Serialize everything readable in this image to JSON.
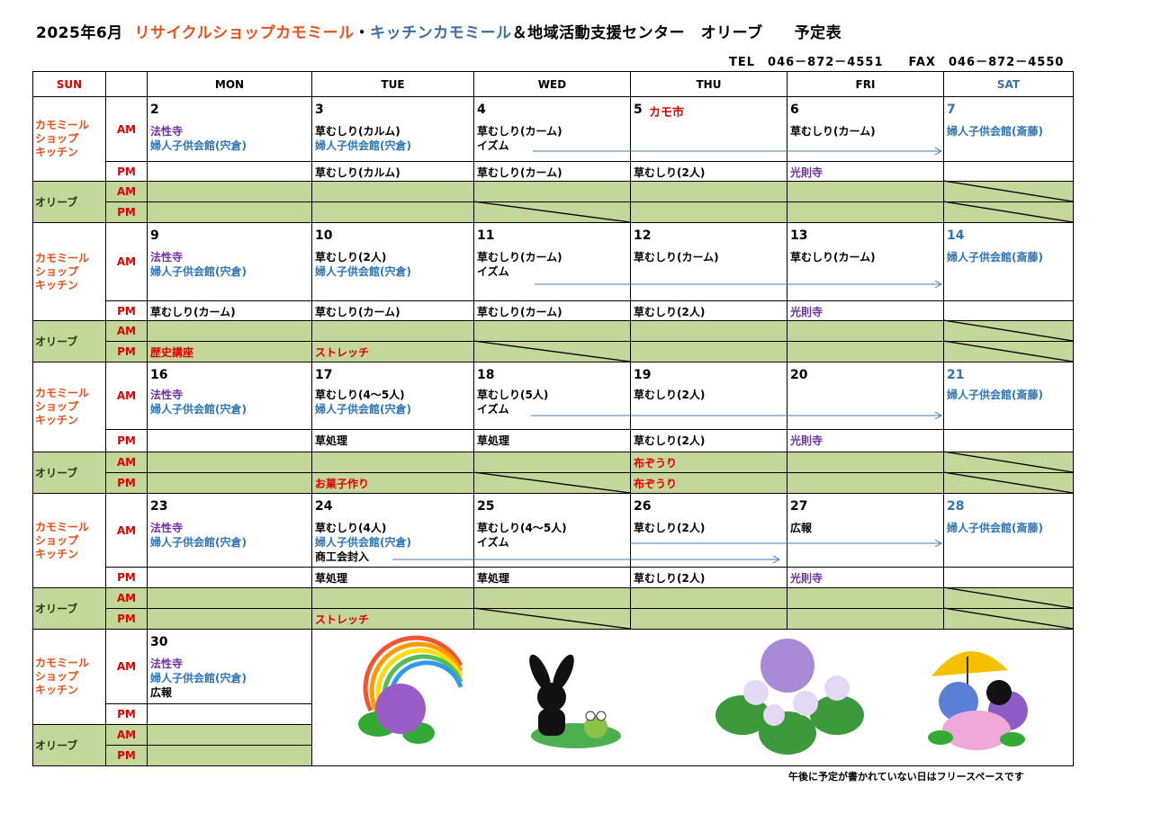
{
  "title": {
    "date": "2025年6月",
    "shop": "リサイクルショップカモミール",
    "dot": "・",
    "kitchen": "キッチンカモミール",
    "rest": "＆地域活動支援センター　オリーブ　　予定表"
  },
  "contact": "TEL　046－872－4551　　FAX　046－872－4550",
  "colors": {
    "orange": "#e8501a",
    "steel_blue": "#3a6ea5",
    "purple": "#7030a0",
    "blue": "#2e75b6",
    "red": "#e00000",
    "black": "#000000",
    "olive_green": "#c4d79b"
  },
  "headers": {
    "sun": "SUN",
    "mon": "MON",
    "tue": "TUE",
    "wed": "WED",
    "thu": "THU",
    "fri": "FRI",
    "sat": "SAT"
  },
  "labels": {
    "kitchen": "カモミール\nショップ\nキッチン",
    "olive": "オリーブ",
    "am": "AM",
    "pm": "PM"
  },
  "weeks": [
    {
      "days": [
        {
          "num": "2",
          "am": [
            {
              "t": "法性寺",
              "c": "#7030a0"
            },
            {
              "t": "婦人子供会館(宍倉)",
              "c": "#2e75b6"
            }
          ],
          "pm": []
        },
        {
          "num": "3",
          "am": [
            {
              "t": "草むしり(カルム)",
              "c": "#000000"
            },
            {
              "t": "婦人子供会館(宍倉)",
              "c": "#2e75b6"
            }
          ],
          "pm": [
            {
              "t": "草むしり(カルム)",
              "c": "#000000"
            }
          ]
        },
        {
          "num": "4",
          "am": [
            {
              "t": "草むしり(カーム)",
              "c": "#000000"
            },
            {
              "t": "イズム",
              "c": "#000000"
            }
          ],
          "pm": [
            {
              "t": "草むしり(カーム)",
              "c": "#000000"
            }
          ],
          "olive_pm_slash": true
        },
        {
          "num": "5",
          "event": "カモ市",
          "am": [],
          "pm": [
            {
              "t": "草むしり(2人)",
              "c": "#000000"
            }
          ]
        },
        {
          "num": "6",
          "am": [
            {
              "t": "草むしり(カーム)",
              "c": "#000000"
            }
          ],
          "pm": [
            {
              "t": "光則寺",
              "c": "#7030a0"
            }
          ]
        },
        {
          "num": "7",
          "sat": true,
          "am": [
            {
              "t": "婦人子供会館(斎藤)",
              "c": "#2e75b6"
            }
          ],
          "pm": []
        }
      ]
    },
    {
      "days": [
        {
          "num": "9",
          "am": [
            {
              "t": "法性寺",
              "c": "#7030a0"
            },
            {
              "t": "婦人子供会館(宍倉)",
              "c": "#2e75b6"
            }
          ],
          "pm": [
            {
              "t": "草むしり(カーム)",
              "c": "#000000"
            }
          ],
          "olive_pm": [
            {
              "t": "歴史講座",
              "c": "#e00000"
            }
          ]
        },
        {
          "num": "10",
          "am": [
            {
              "t": "草むしり(2人)",
              "c": "#000000"
            },
            {
              "t": "婦人子供会館(宍倉)",
              "c": "#2e75b6"
            }
          ],
          "pm": [
            {
              "t": "草むしり(カーム)",
              "c": "#000000"
            }
          ],
          "olive_pm": [
            {
              "t": "ストレッチ",
              "c": "#e00000"
            }
          ]
        },
        {
          "num": "11",
          "am": [
            {
              "t": "草むしり(カーム)",
              "c": "#000000"
            },
            {
              "t": "イズム",
              "c": "#000000"
            }
          ],
          "pm": [
            {
              "t": "草むしり(カーム)",
              "c": "#000000"
            }
          ],
          "olive_pm_slash": true
        },
        {
          "num": "12",
          "am": [
            {
              "t": "草むしり(カーム)",
              "c": "#000000"
            }
          ],
          "pm": [
            {
              "t": "草むしり(2人)",
              "c": "#000000"
            }
          ]
        },
        {
          "num": "13",
          "am": [
            {
              "t": "草むしり(カーム)",
              "c": "#000000"
            }
          ],
          "pm": [
            {
              "t": "光則寺",
              "c": "#7030a0"
            }
          ]
        },
        {
          "num": "14",
          "sat": true,
          "am": [
            {
              "t": "婦人子供会館(斎藤)",
              "c": "#2e75b6"
            }
          ],
          "pm": []
        }
      ]
    },
    {
      "days": [
        {
          "num": "16",
          "am": [
            {
              "t": "法性寺",
              "c": "#7030a0"
            },
            {
              "t": "婦人子供会館(宍倉)",
              "c": "#2e75b6"
            }
          ],
          "pm": []
        },
        {
          "num": "17",
          "am": [
            {
              "t": "草むしり(4～5人)",
              "c": "#000000"
            },
            {
              "t": "婦人子供会館(宍倉)",
              "c": "#2e75b6"
            }
          ],
          "pm": [
            {
              "t": "草処理",
              "c": "#000000"
            }
          ],
          "olive_pm": [
            {
              "t": "お菓子作り",
              "c": "#e00000"
            }
          ]
        },
        {
          "num": "18",
          "am": [
            {
              "t": "草むしり(5人)",
              "c": "#000000"
            },
            {
              "t": "イズム",
              "c": "#000000"
            }
          ],
          "pm": [
            {
              "t": "草処理",
              "c": "#000000"
            }
          ],
          "olive_pm_slash": true
        },
        {
          "num": "19",
          "am": [
            {
              "t": "草むしり(2人)",
              "c": "#000000"
            }
          ],
          "pm": [
            {
              "t": "草むしり(2人)",
              "c": "#000000"
            }
          ],
          "olive_am": [
            {
              "t": "布ぞうり",
              "c": "#e00000"
            }
          ],
          "olive_pm": [
            {
              "t": "布ぞうり",
              "c": "#e00000"
            }
          ]
        },
        {
          "num": "20",
          "am": [],
          "pm": [
            {
              "t": "光則寺",
              "c": "#7030a0"
            }
          ]
        },
        {
          "num": "21",
          "sat": true,
          "am": [
            {
              "t": "婦人子供会館(斎藤)",
              "c": "#2e75b6"
            }
          ],
          "pm": []
        }
      ]
    },
    {
      "days": [
        {
          "num": "23",
          "am": [
            {
              "t": "法性寺",
              "c": "#7030a0"
            },
            {
              "t": "婦人子供会館(宍倉)",
              "c": "#2e75b6"
            }
          ],
          "pm": []
        },
        {
          "num": "24",
          "am": [
            {
              "t": "草むしり(4人)",
              "c": "#000000"
            },
            {
              "t": "婦人子供会館(宍倉)",
              "c": "#2e75b6"
            },
            {
              "t": "商工会封入",
              "c": "#000000"
            }
          ],
          "pm": [
            {
              "t": "草処理",
              "c": "#000000"
            }
          ],
          "olive_pm": [
            {
              "t": "ストレッチ",
              "c": "#e00000"
            }
          ]
        },
        {
          "num": "25",
          "am": [
            {
              "t": "草むしり(4～5人)",
              "c": "#000000"
            },
            {
              "t": "イズム",
              "c": "#000000"
            }
          ],
          "pm": [
            {
              "t": "草処理",
              "c": "#000000"
            }
          ],
          "olive_pm_slash": true
        },
        {
          "num": "26",
          "am": [
            {
              "t": "草むしり(2人)",
              "c": "#000000"
            }
          ],
          "pm": [
            {
              "t": "草むしり(2人)",
              "c": "#000000"
            }
          ]
        },
        {
          "num": "27",
          "am": [
            {
              "t": "広報",
              "c": "#000000"
            }
          ],
          "pm": [
            {
              "t": "光則寺",
              "c": "#7030a0"
            }
          ]
        },
        {
          "num": "28",
          "sat": true,
          "am": [
            {
              "t": "婦人子供会館(斎藤)",
              "c": "#2e75b6"
            }
          ],
          "pm": []
        }
      ]
    },
    {
      "days": [
        {
          "num": "30",
          "am": [
            {
              "t": "法性寺",
              "c": "#7030a0"
            },
            {
              "t": "婦人子供会館(宍倉)",
              "c": "#2e75b6"
            },
            {
              "t": "広報",
              "c": "#000000"
            }
          ],
          "pm": []
        }
      ]
    }
  ],
  "illustrations": [
    "rainbow-hydrangea",
    "rabbit-frog-rain",
    "hydrangea",
    "rabbit-umbrella-hydrangea"
  ],
  "note": "午後に予定が書かれていない日はフリースペースです"
}
